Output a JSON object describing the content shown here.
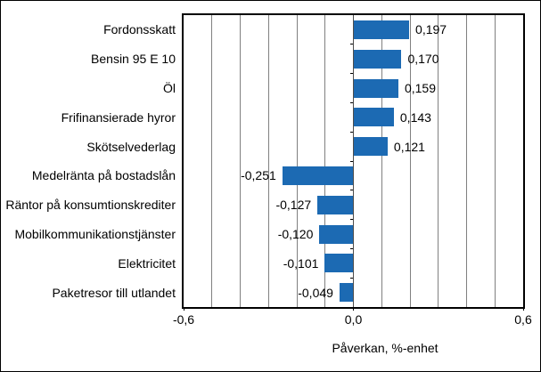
{
  "chart_data": {
    "type": "bar",
    "orientation": "horizontal",
    "title": "",
    "xlabel": "Påverkan, %-enhet",
    "ylabel": "",
    "xlim": [
      -0.6,
      0.6
    ],
    "gridline_interval": 0.1,
    "grid": true,
    "categories": [
      "Fordonsskatt",
      "Bensin 95 E 10",
      "Öl",
      "Frifinansierade hyror",
      "Skötselvederlag",
      "Medelränta på bostadslån",
      "Räntor på konsumtionskrediter",
      "Mobilkommunikationstjänster",
      "Elektricitet",
      "Paketresor till utlandet"
    ],
    "values": [
      0.197,
      0.17,
      0.159,
      0.143,
      0.121,
      -0.251,
      -0.127,
      -0.12,
      -0.101,
      -0.049
    ],
    "value_labels": [
      "0,197",
      "0,170",
      "0,159",
      "0,143",
      "0,121",
      "-0,251",
      "-0,127",
      "-0,120",
      "-0,101",
      "-0,049"
    ],
    "x_ticks": [
      {
        "value": -0.6,
        "label": "-0,6"
      },
      {
        "value": 0.0,
        "label": "0,0"
      },
      {
        "value": 0.6,
        "label": "0,6"
      }
    ],
    "colors": {
      "bar": "#1c6ab3",
      "gridline": "#808080",
      "zero_line": "#4d4d4d",
      "axis": "#000000",
      "text": "#000000"
    }
  }
}
